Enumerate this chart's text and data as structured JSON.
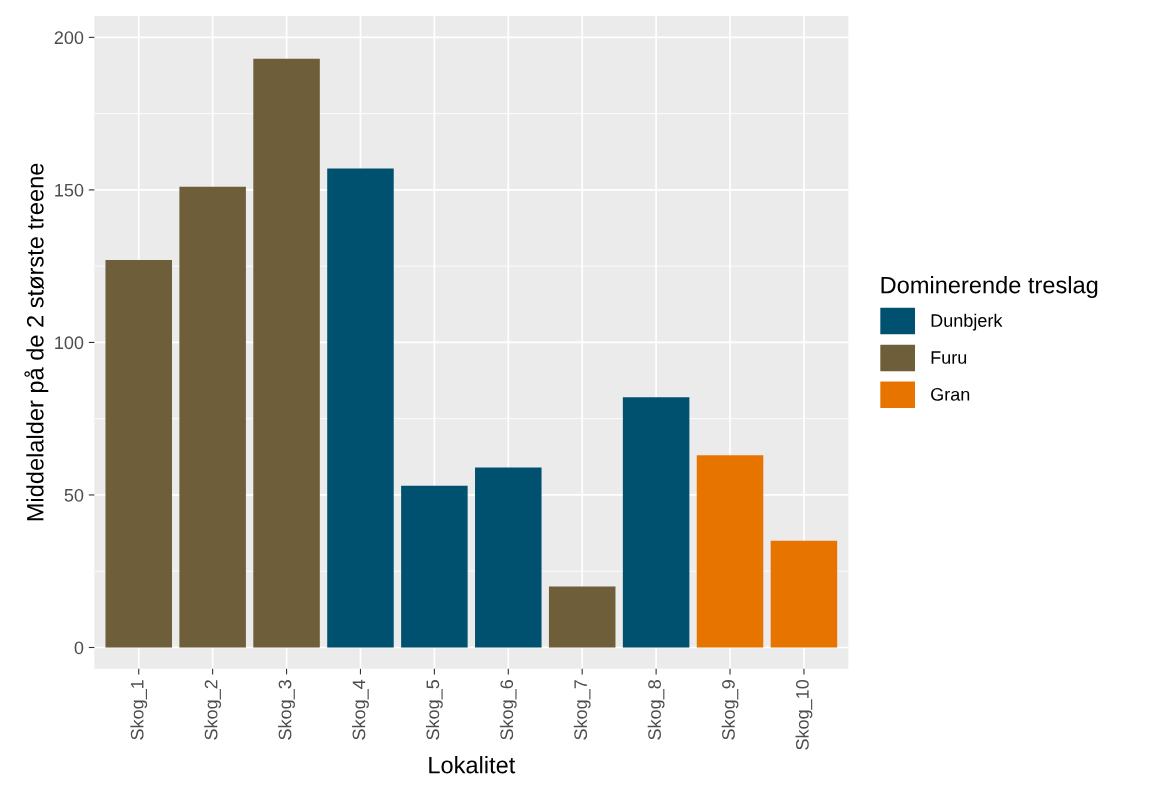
{
  "chart_data": {
    "type": "bar",
    "xlabel": "Lokalitet",
    "ylabel": "Middelalder på de 2 største treene",
    "legend_title": "Dominerende treslag",
    "categories": [
      "Skog_1",
      "Skog_2",
      "Skog_3",
      "Skog_4",
      "Skog_5",
      "Skog_6",
      "Skog_7",
      "Skog_8",
      "Skog_9",
      "Skog_10"
    ],
    "series": [
      {
        "name": "Dunbjerk",
        "color": "#00516f",
        "values": [
          null,
          null,
          null,
          157,
          53,
          59,
          null,
          82,
          null,
          null
        ]
      },
      {
        "name": "Furu",
        "color": "#6f5e3a",
        "values": [
          127,
          151,
          193,
          null,
          null,
          null,
          20,
          null,
          null,
          null
        ]
      },
      {
        "name": "Gran",
        "color": "#e87400",
        "values": [
          null,
          null,
          null,
          null,
          null,
          null,
          null,
          null,
          63,
          35
        ]
      }
    ],
    "ylim": [
      -7,
      207
    ],
    "yticks": [
      0,
      50,
      100,
      150,
      200
    ],
    "grid": true,
    "legend": "right"
  }
}
